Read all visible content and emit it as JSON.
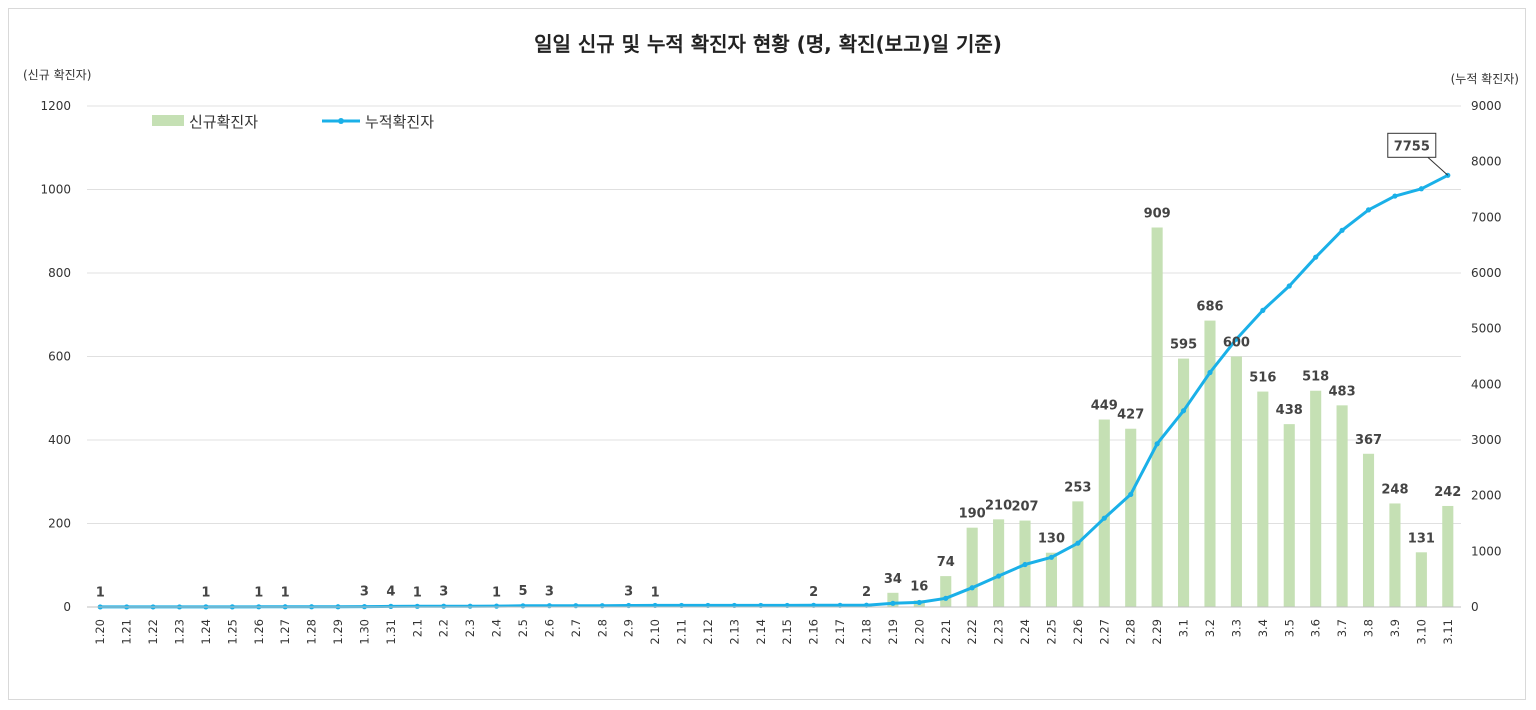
{
  "chart_data": {
    "type": "bar+line",
    "title": "일일 신규 및 누적 확진자 현황 (명, 확진(보고)일 기준)",
    "ylabel_left": "(신규 확진자)",
    "ylabel_right": "(누적 확진자)",
    "ylim_left": [
      0,
      1200
    ],
    "ylim_right": [
      0,
      9000
    ],
    "yticks_left": [
      0,
      200,
      400,
      600,
      800,
      1000,
      1200
    ],
    "yticks_right": [
      0,
      1000,
      2000,
      3000,
      4000,
      5000,
      6000,
      7000,
      8000,
      9000
    ],
    "grid": true,
    "legend_position": "top-left",
    "categories": [
      "1.20",
      "1.21",
      "1.22",
      "1.23",
      "1.24",
      "1.25",
      "1.26",
      "1.27",
      "1.28",
      "1.29",
      "1.30",
      "1.31",
      "2.1",
      "2.2",
      "2.3",
      "2.4",
      "2.5",
      "2.6",
      "2.7",
      "2.8",
      "2.9",
      "2.10",
      "2.11",
      "2.12",
      "2.13",
      "2.14",
      "2.15",
      "2.16",
      "2.17",
      "2.18",
      "2.19",
      "2.20",
      "2.21",
      "2.22",
      "2.23",
      "2.24",
      "2.25",
      "2.26",
      "2.27",
      "2.28",
      "2.29",
      "3.1",
      "3.2",
      "3.3",
      "3.4",
      "3.5",
      "3.6",
      "3.7",
      "3.8",
      "3.9",
      "3.10",
      "3.11"
    ],
    "series": [
      {
        "name": "신규확진자",
        "type": "bar",
        "color": "#c5e0b4",
        "values": [
          1,
          0,
          0,
          0,
          1,
          0,
          1,
          1,
          0,
          0,
          3,
          4,
          1,
          3,
          0,
          1,
          5,
          3,
          0,
          0,
          3,
          1,
          0,
          0,
          0,
          0,
          0,
          2,
          0,
          2,
          34,
          16,
          74,
          190,
          210,
          207,
          130,
          253,
          449,
          427,
          909,
          595,
          686,
          600,
          516,
          438,
          518,
          483,
          367,
          248,
          131,
          242
        ],
        "labels": [
          "1",
          "",
          "",
          "",
          "1",
          "",
          "1",
          "1",
          "",
          "",
          "3",
          "4",
          "1",
          "3",
          "",
          "1",
          "5",
          "3",
          "",
          "",
          "3",
          "1",
          "",
          "",
          "",
          "",
          "",
          "2",
          "",
          "2",
          "34",
          "16",
          "74",
          "190",
          "210",
          "207",
          "130",
          "253",
          "449",
          "427",
          "909",
          "595",
          "686",
          "600",
          "516",
          "438",
          "518",
          "483",
          "367",
          "248",
          "131",
          "242"
        ]
      },
      {
        "name": "누적확진자",
        "type": "line",
        "color": "#1ab0e8",
        "values": [
          1,
          1,
          1,
          1,
          2,
          2,
          3,
          4,
          4,
          4,
          7,
          11,
          12,
          15,
          15,
          16,
          21,
          24,
          24,
          24,
          27,
          28,
          28,
          28,
          28,
          28,
          28,
          30,
          30,
          32,
          66,
          82,
          156,
          346,
          556,
          763,
          893,
          1146,
          1595,
          2022,
          2931,
          3526,
          4212,
          4812,
          5328,
          5766,
          6284,
          6767,
          7134,
          7382,
          7513,
          7755
        ]
      }
    ],
    "callout": "7755",
    "highlight_color": "#e02020"
  }
}
